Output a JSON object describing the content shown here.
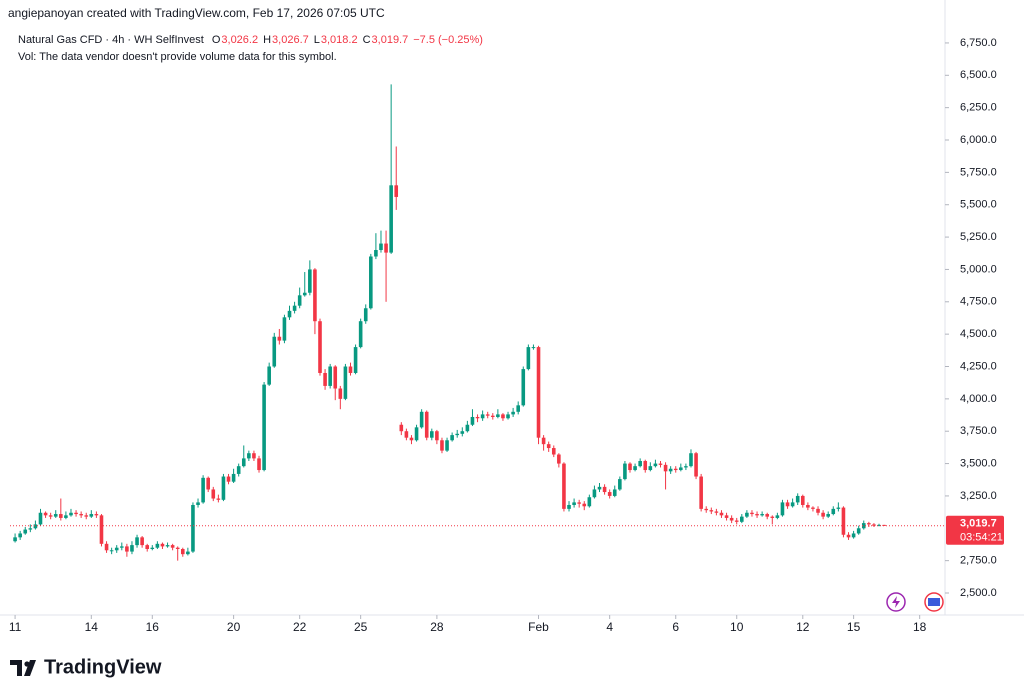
{
  "chart_data": {
    "type": "candlestick",
    "header": "angiepanoyan created with TradingView.com, Feb 17, 2026 07:05 UTC",
    "title": "Natural Gas CFD · 4h · WH SelfInvest",
    "ohlc_legend": [
      {
        "key": "O",
        "value": "3,026.2"
      },
      {
        "key": "H",
        "value": "3,026.7"
      },
      {
        "key": "L",
        "value": "3,018.2"
      },
      {
        "key": "C",
        "value": "3,019.7"
      }
    ],
    "change": "−7.5 (−0.25%)",
    "subtitle": "Vol: The data vendor doesn't provide volume data for this symbol.",
    "brand": "TradingView",
    "up_color": "#089981",
    "down_color": "#f23645",
    "grid": false,
    "ylim": [
      2330,
      6850
    ],
    "yticks": [
      {
        "value": 2500,
        "label": "2,500.0"
      },
      {
        "value": 2750,
        "label": "2,750.0"
      },
      {
        "value": 3250,
        "label": "3,250.0"
      },
      {
        "value": 3500,
        "label": "3,500.0"
      },
      {
        "value": 3750,
        "label": "3,750.0"
      },
      {
        "value": 4000,
        "label": "4,000.0"
      },
      {
        "value": 4250,
        "label": "4,250.0"
      },
      {
        "value": 4500,
        "label": "4,500.0"
      },
      {
        "value": 4750,
        "label": "4,750.0"
      },
      {
        "value": 5000,
        "label": "5,000.0"
      },
      {
        "value": 5250,
        "label": "5,250.0"
      },
      {
        "value": 5500,
        "label": "5,500.0"
      },
      {
        "value": 5750,
        "label": "5,750.0"
      },
      {
        "value": 6000,
        "label": "6,000.0"
      },
      {
        "value": 6250,
        "label": "6,250.0"
      },
      {
        "value": 6500,
        "label": "6,500.0"
      },
      {
        "value": 6750,
        "label": "6,750.0"
      }
    ],
    "xlim": [
      -1,
      182
    ],
    "xticks": [
      {
        "value": 0,
        "label": "11"
      },
      {
        "value": 15,
        "label": "14"
      },
      {
        "value": 27,
        "label": "16"
      },
      {
        "value": 43,
        "label": "20"
      },
      {
        "value": 56,
        "label": "22"
      },
      {
        "value": 68,
        "label": "25"
      },
      {
        "value": 83,
        "label": "28"
      },
      {
        "value": 103,
        "label": "Feb"
      },
      {
        "value": 117,
        "label": "4"
      },
      {
        "value": 130,
        "label": "6"
      },
      {
        "value": 142,
        "label": "10"
      },
      {
        "value": 155,
        "label": "12"
      },
      {
        "value": 165,
        "label": "15"
      },
      {
        "value": 178,
        "label": "18"
      }
    ],
    "last_price": {
      "value": 3019.7,
      "label": "3,019.7"
    },
    "countdown": "03:54:21",
    "open": [
      2900,
      2930,
      2960,
      2990,
      3000,
      3030,
      3120,
      3100,
      3090,
      3110,
      3080,
      3100,
      3120,
      3110,
      3100,
      3090,
      3110,
      3100,
      2880,
      2830,
      2830,
      2850,
      2860,
      2820,
      2870,
      2930,
      2870,
      2840,
      2850,
      2880,
      2860,
      2870,
      2850,
      2840,
      2800,
      2820,
      3180,
      3200,
      3390,
      3300,
      3230,
      3220,
      3400,
      3360,
      3420,
      3480,
      3540,
      3580,
      3540,
      3450,
      4110,
      4250,
      4480,
      4450,
      4630,
      4680,
      4720,
      4800,
      4820,
      5000,
      4600,
      4200,
      4100,
      4250,
      4080,
      4000,
      4250,
      4200,
      4400,
      4600,
      4700,
      5100,
      5150,
      5200,
      5130,
      5650,
      3800,
      3750,
      3700,
      3680,
      3780,
      3900,
      3700,
      3750,
      3680,
      3600,
      3680,
      3720,
      3730,
      3750,
      3800,
      3860,
      3850,
      3880,
      3870,
      3860,
      3880,
      3850,
      3880,
      3900,
      3950,
      4230,
      4400,
      4400,
      3700,
      3650,
      3620,
      3570,
      3500,
      3150,
      3180,
      3200,
      3190,
      3170,
      3240,
      3300,
      3320,
      3280,
      3250,
      3300,
      3380,
      3500,
      3450,
      3480,
      3520,
      3450,
      3480,
      3500,
      3490,
      3440,
      3460,
      3450,
      3470,
      3480,
      3580,
      3400,
      3150,
      3140,
      3130,
      3120,
      3100,
      3080,
      3060,
      3050,
      3090,
      3120,
      3110,
      3100,
      3110,
      3090,
      3080,
      3100,
      3200,
      3170,
      3200,
      3250,
      3180,
      3160,
      3150,
      3120,
      3090,
      3110,
      3150,
      3160,
      2950,
      2930,
      2960,
      3000,
      3040,
      3030,
      3020,
      3026.2
    ],
    "high": [
      2960,
      2980,
      3010,
      3030,
      3060,
      3150,
      3130,
      3120,
      3140,
      3230,
      3130,
      3150,
      3140,
      3130,
      3120,
      3140,
      3130,
      3110,
      2900,
      2850,
      2870,
      2890,
      2880,
      2900,
      2950,
      2940,
      2880,
      2870,
      2900,
      2890,
      2890,
      2880,
      2860,
      2850,
      2850,
      3200,
      3230,
      3410,
      3400,
      3320,
      3260,
      3420,
      3420,
      3460,
      3500,
      3640,
      3600,
      3600,
      3560,
      4130,
      4280,
      4510,
      4540,
      4650,
      4720,
      4750,
      4860,
      4980,
      5070,
      5010,
      4620,
      4230,
      4270,
      4260,
      4100,
      4270,
      4280,
      4420,
      4620,
      4730,
      5120,
      5280,
      5300,
      5300,
      6430,
      5950,
      3820,
      3770,
      3720,
      3800,
      3920,
      3910,
      3770,
      3760,
      3700,
      3700,
      3740,
      3760,
      3780,
      3830,
      3920,
      3880,
      3910,
      3900,
      3890,
      3920,
      3890,
      3900,
      3930,
      3980,
      4250,
      4420,
      4420,
      4410,
      3720,
      3670,
      3640,
      3580,
      3510,
      3210,
      3230,
      3220,
      3210,
      3260,
      3330,
      3350,
      3340,
      3300,
      3330,
      3400,
      3520,
      3510,
      3500,
      3540,
      3530,
      3510,
      3530,
      3520,
      3510,
      3480,
      3480,
      3500,
      3500,
      3610,
      3590,
      3420,
      3170,
      3160,
      3150,
      3140,
      3120,
      3100,
      3080,
      3110,
      3140,
      3140,
      3130,
      3130,
      3120,
      3100,
      3120,
      3220,
      3220,
      3230,
      3270,
      3260,
      3200,
      3170,
      3170,
      3140,
      3130,
      3170,
      3200,
      3170,
      2970,
      2980,
      3020,
      3060,
      3050,
      3040,
      3035,
      3026.7
    ],
    "low": [
      2890,
      2910,
      2950,
      2970,
      2990,
      3020,
      3080,
      3070,
      3080,
      3060,
      3070,
      3090,
      3090,
      3080,
      3070,
      3080,
      3080,
      2860,
      2810,
      2800,
      2810,
      2830,
      2780,
      2800,
      2850,
      2850,
      2820,
      2830,
      2840,
      2840,
      2850,
      2830,
      2750,
      2780,
      2790,
      2810,
      3160,
      3190,
      3280,
      3210,
      3200,
      3210,
      3340,
      3350,
      3400,
      3470,
      3520,
      3520,
      3430,
      3440,
      4100,
      4240,
      4420,
      4430,
      4610,
      4660,
      4700,
      4790,
      4800,
      4500,
      4180,
      4070,
      4080,
      3990,
      3920,
      3990,
      4180,
      4190,
      4390,
      4580,
      4690,
      5080,
      5130,
      4750,
      5120,
      5460,
      3720,
      3680,
      3650,
      3670,
      3770,
      3680,
      3680,
      3650,
      3580,
      3590,
      3670,
      3700,
      3710,
      3740,
      3790,
      3820,
      3830,
      3850,
      3840,
      3850,
      3830,
      3840,
      3860,
      3880,
      3940,
      4220,
      4380,
      3650,
      3600,
      3590,
      3550,
      3470,
      3130,
      3130,
      3160,
      3160,
      3140,
      3160,
      3230,
      3280,
      3260,
      3230,
      3240,
      3290,
      3370,
      3430,
      3440,
      3470,
      3430,
      3440,
      3470,
      3470,
      3300,
      3420,
      3430,
      3440,
      3450,
      3470,
      3380,
      3130,
      3120,
      3110,
      3100,
      3080,
      3060,
      3040,
      3030,
      3040,
      3080,
      3090,
      3080,
      3090,
      3070,
      3030,
      3070,
      3090,
      3150,
      3160,
      3180,
      3160,
      3140,
      3130,
      3100,
      3070,
      3080,
      3100,
      3130,
      2930,
      2910,
      2920,
      2950,
      2990,
      3010,
      3010,
      3015,
      3018.2
    ],
    "close": [
      2930,
      2960,
      2990,
      3000,
      3030,
      3120,
      3100,
      3090,
      3110,
      3080,
      3100,
      3120,
      3110,
      3100,
      3090,
      3110,
      3100,
      2880,
      2830,
      2830,
      2850,
      2860,
      2820,
      2870,
      2930,
      2870,
      2840,
      2850,
      2880,
      2860,
      2870,
      2850,
      2840,
      2800,
      2820,
      3180,
      3200,
      3390,
      3300,
      3230,
      3220,
      3400,
      3360,
      3420,
      3480,
      3540,
      3580,
      3540,
      3450,
      4110,
      4250,
      4480,
      4450,
      4630,
      4680,
      4720,
      4800,
      4820,
      5000,
      4600,
      4200,
      4100,
      4250,
      4080,
      4000,
      4250,
      4200,
      4400,
      4600,
      4700,
      5100,
      5150,
      5200,
      5130,
      5650,
      5560,
      3750,
      3700,
      3680,
      3780,
      3900,
      3700,
      3750,
      3680,
      3600,
      3680,
      3720,
      3730,
      3750,
      3800,
      3860,
      3850,
      3880,
      3870,
      3860,
      3880,
      3850,
      3880,
      3900,
      3950,
      4230,
      4400,
      4400,
      3700,
      3650,
      3620,
      3570,
      3500,
      3150,
      3180,
      3200,
      3190,
      3170,
      3240,
      3300,
      3320,
      3280,
      3250,
      3300,
      3380,
      3500,
      3450,
      3480,
      3520,
      3450,
      3480,
      3500,
      3490,
      3440,
      3460,
      3450,
      3470,
      3480,
      3580,
      3400,
      3150,
      3140,
      3130,
      3120,
      3100,
      3080,
      3060,
      3050,
      3090,
      3120,
      3110,
      3100,
      3110,
      3090,
      3080,
      3100,
      3200,
      3170,
      3200,
      3250,
      3180,
      3160,
      3150,
      3120,
      3090,
      3110,
      3150,
      3160,
      2950,
      2930,
      2960,
      3000,
      3040,
      3030,
      3020,
      3026.2,
      3019.7
    ]
  }
}
